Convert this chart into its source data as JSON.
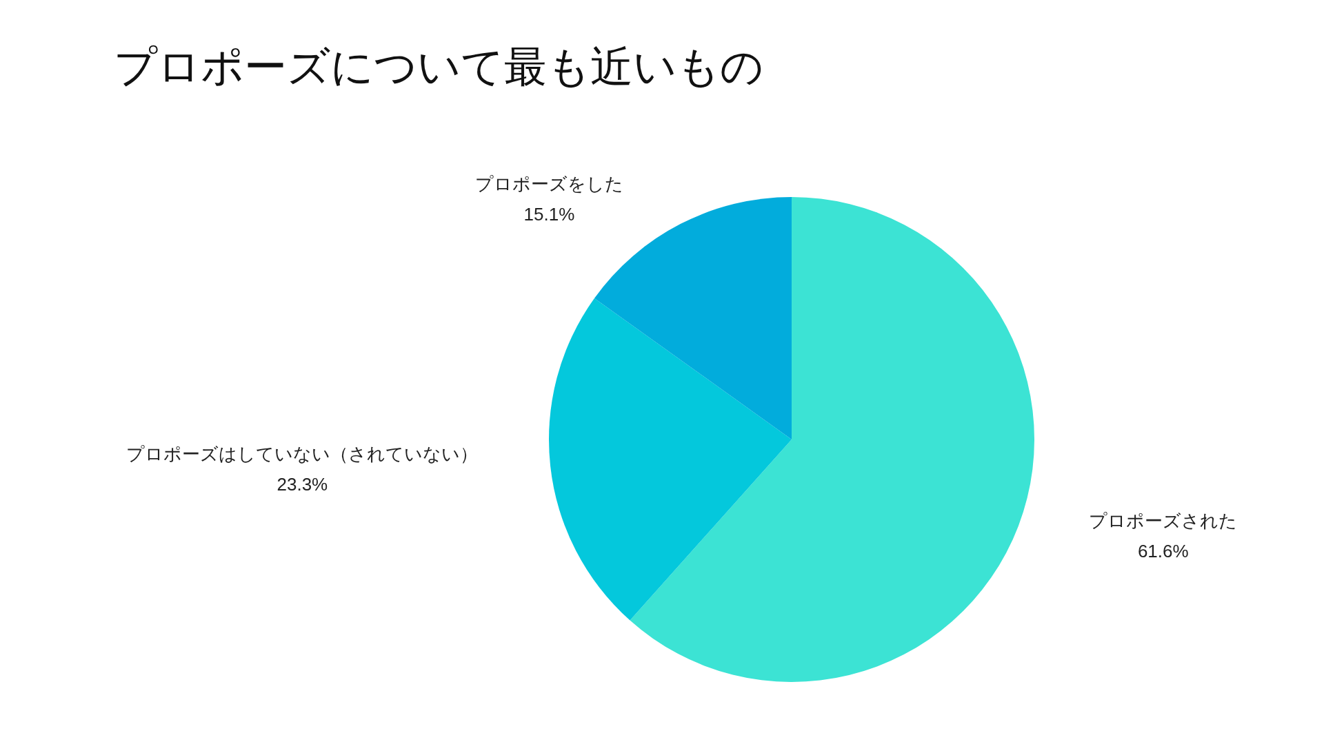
{
  "chart_data": {
    "type": "pie",
    "title": "プロポーズについて最も近いもの",
    "categories": [
      "プロポーズされた",
      "プロポーズはしていない（されていない）",
      "プロポーズをした"
    ],
    "values": [
      61.6,
      23.3,
      15.1
    ],
    "colors": [
      "#3ce3d4",
      "#04c8dc",
      "#02acdc"
    ],
    "value_labels": [
      "61.6%",
      "23.3%",
      "15.1%"
    ],
    "legend": false
  }
}
